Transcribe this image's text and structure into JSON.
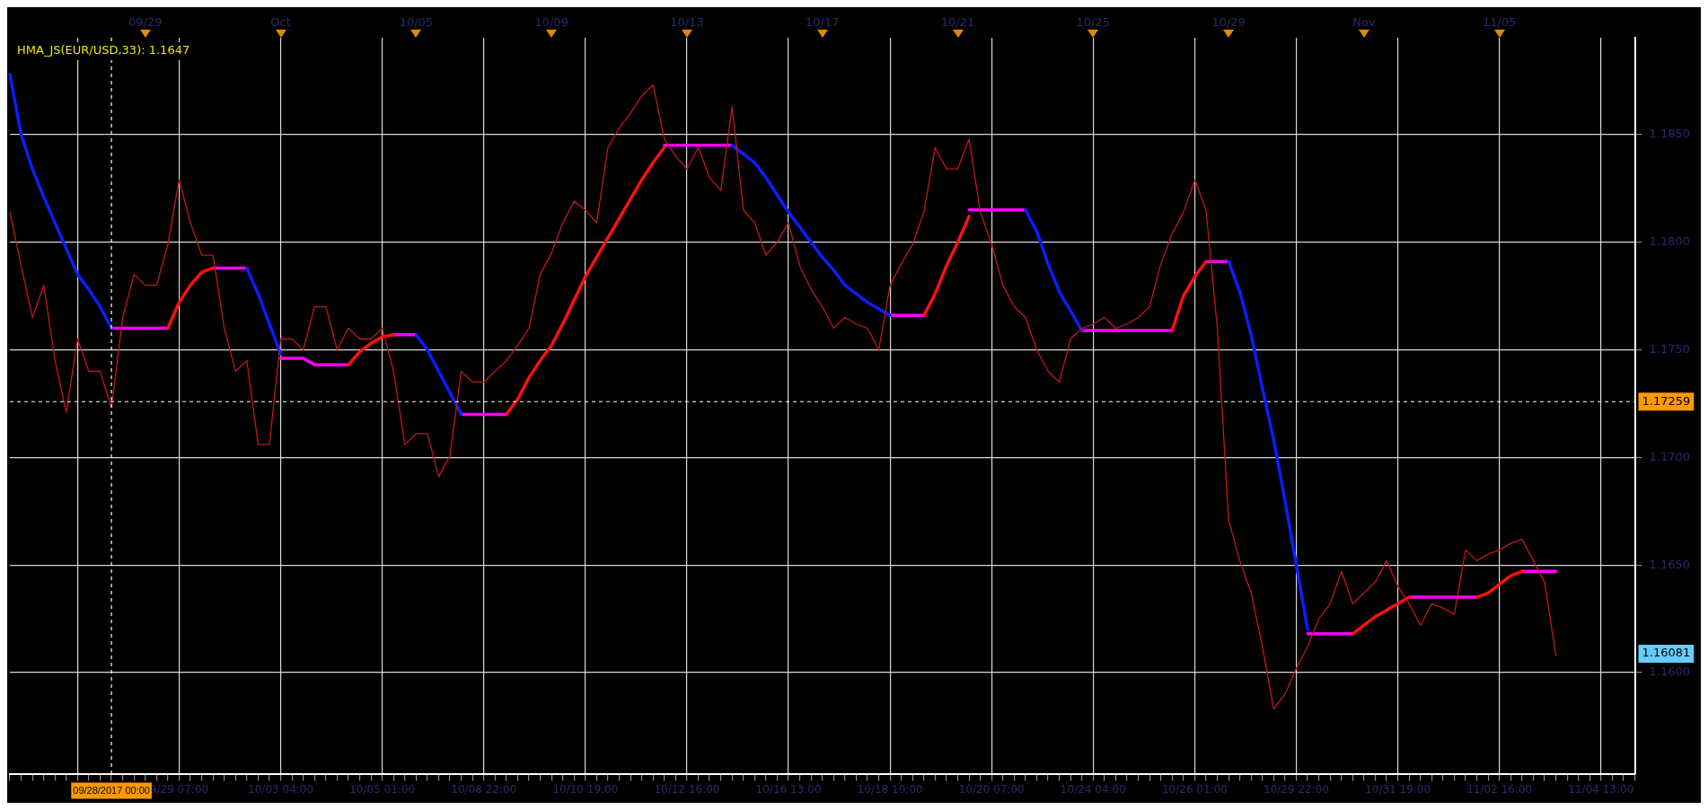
{
  "chart_data": {
    "type": "line",
    "title": "HMA_JS(EUR/USD,33): 1.1647",
    "categories": [
      null,
      null,
      null,
      null,
      null,
      null,
      null,
      null,
      null,
      "09/28/2017 00:00",
      null,
      null,
      null,
      null,
      null,
      "9/29 07:00",
      null,
      null,
      null,
      null,
      null,
      null,
      null,
      null,
      "10/03 04:00",
      null,
      null,
      null,
      null,
      null,
      null,
      null,
      null,
      "10/05 01:00",
      null,
      null,
      null,
      null,
      null,
      null,
      null,
      null,
      "10/08 22:00",
      null,
      null,
      null,
      null,
      null,
      null,
      null,
      null,
      "10/10 19:00",
      null,
      null,
      null,
      null,
      null,
      null,
      null,
      null,
      "10/12 16:00",
      null,
      null,
      null,
      null,
      null,
      null,
      null,
      null,
      "10/16 13:00",
      null,
      null,
      null,
      null,
      null,
      null,
      null,
      null,
      "10/18 10:00",
      null,
      null,
      null,
      null,
      null,
      null,
      null,
      null,
      "10/20 07:00",
      null,
      null,
      null,
      null,
      null,
      null,
      null,
      null,
      "10/24 04:00",
      null,
      null,
      null,
      null,
      null,
      null,
      null,
      null,
      "10/26 01:00",
      null,
      null,
      null,
      null,
      null,
      null,
      null,
      null,
      "10/29 22:00",
      null,
      null,
      null,
      null,
      null,
      null,
      null,
      null,
      "10/31 19:00",
      null,
      null,
      null,
      null,
      null,
      null,
      null,
      null,
      "11/02 16:00",
      null,
      null,
      null,
      null,
      null,
      null,
      null,
      null,
      "11/04 13:00",
      null,
      null,
      null
    ],
    "ylim": [
      1.1553,
      1.1895
    ],
    "yticks": [
      {
        "value": 1.16,
        "label": "1.1600"
      },
      {
        "value": 1.165,
        "label": "1.1650"
      },
      {
        "value": 1.17,
        "label": "1.1700"
      },
      {
        "value": 1.175,
        "label": "1.1750"
      },
      {
        "value": 1.18,
        "label": "1.1800"
      },
      {
        "value": 1.185,
        "label": "1.1850"
      }
    ],
    "grid": true,
    "legend": false,
    "ref_lines": [
      {
        "axis": "x",
        "value": "09/28/2017 00:00",
        "color": "#ffffff",
        "line_style": "dashed"
      },
      {
        "axis": "y",
        "value": 1.17259,
        "label": "1.17259",
        "color": "#ffffff",
        "line_style": "dashed"
      }
    ],
    "annotations": [
      "09/29",
      "Oct",
      "10/05",
      "10/09",
      "10/13",
      "10/17",
      "10/21",
      "10/25",
      "10/29",
      "Nov",
      "11/05",
      "1.16081"
    ],
    "series": [
      {
        "color": "#c01818",
        "values": [
          1.1814,
          1.1789,
          1.1765,
          1.178,
          1.1745,
          1.1721,
          1.1755,
          1.174,
          1.174,
          1.1723,
          1.1765,
          1.1785,
          1.178,
          1.178,
          1.1799,
          1.1829,
          1.1809,
          1.1794,
          1.1794,
          1.176,
          1.174,
          1.1745,
          1.1706,
          1.1706,
          1.1755,
          1.1755,
          1.175,
          1.177,
          1.177,
          1.175,
          1.176,
          1.1755,
          1.1755,
          1.176,
          1.174,
          1.1706,
          1.1711,
          1.1711,
          1.1691,
          1.1701,
          1.174,
          1.1735,
          1.1735,
          1.174,
          1.1745,
          1.1752,
          1.176,
          1.1785,
          1.1795,
          1.1809,
          1.1819,
          1.1815,
          1.1809,
          1.1844,
          1.1853,
          1.186,
          1.1868,
          1.1873,
          1.1848,
          1.184,
          1.1834,
          1.1844,
          1.183,
          1.1824,
          1.1863,
          1.1815,
          1.1809,
          1.1794,
          1.18,
          1.1809,
          1.1789,
          1.1778,
          1.177,
          1.176,
          1.1765,
          1.1762,
          1.176,
          1.175,
          1.178,
          1.179,
          1.1799,
          1.1814,
          1.1844,
          1.1834,
          1.1834,
          1.1848,
          1.1814,
          1.1799,
          1.178,
          1.177,
          1.1765,
          1.175,
          1.174,
          1.1735,
          1.1755,
          1.176,
          1.1762,
          1.1765,
          1.176,
          1.1762,
          1.1765,
          1.177,
          1.179,
          1.1804,
          1.1814,
          1.1829,
          1.1815,
          1.176,
          1.1671,
          1.1652,
          1.1637,
          1.1612,
          1.1583,
          1.159,
          1.1602,
          1.1612,
          1.1625,
          1.1632,
          1.1647,
          1.1632,
          1.1637,
          1.1642,
          1.1652,
          1.164,
          1.1632,
          1.1622,
          1.1632,
          1.163,
          1.1627,
          1.1657,
          1.1652,
          1.1655,
          1.1657,
          1.166,
          1.1662,
          1.1652,
          1.1642,
          1.16081,
          null,
          null,
          null,
          null,
          null,
          null,
          null
        ]
      },
      {
        "color": "#0a1eff",
        "values": [
          1.1878,
          1.185,
          1.1834,
          1.1821,
          1.1809,
          1.1797,
          1.1785,
          1.1778,
          1.177,
          1.176,
          null,
          null,
          null,
          null,
          null,
          null,
          null,
          null,
          null,
          null,
          null,
          1.1788,
          1.1776,
          1.1762,
          1.1748,
          null,
          null,
          null,
          null,
          null,
          null,
          null,
          null,
          null,
          null,
          null,
          1.1757,
          1.175,
          1.174,
          1.173,
          1.172,
          null,
          null,
          null,
          null,
          null,
          null,
          null,
          null,
          null,
          null,
          null,
          null,
          null,
          null,
          null,
          null,
          null,
          null,
          null,
          null,
          null,
          null,
          null,
          1.1845,
          1.1841,
          1.1837,
          1.183,
          1.1822,
          1.1814,
          1.1807,
          1.18,
          1.1793,
          1.1787,
          1.178,
          1.1776,
          1.1772,
          1.1769,
          1.1766,
          null,
          null,
          null,
          null,
          null,
          null,
          null,
          null,
          null,
          null,
          null,
          1.1815,
          1.1805,
          1.179,
          1.1777,
          1.1768,
          1.1759,
          null,
          null,
          null,
          null,
          null,
          null,
          null,
          null,
          null,
          null,
          null,
          null,
          1.1791,
          1.1777,
          1.1757,
          1.1732,
          1.1708,
          1.168,
          1.165,
          1.162,
          null,
          null,
          null,
          null,
          null,
          null,
          null,
          null,
          null,
          null,
          null,
          null,
          null,
          null,
          null,
          null,
          null,
          null,
          null,
          null,
          null,
          null,
          null,
          null,
          null,
          null,
          null,
          null,
          null
        ]
      },
      {
        "color": "#ff1010",
        "values": [
          null,
          null,
          null,
          null,
          null,
          null,
          null,
          null,
          null,
          null,
          null,
          null,
          null,
          null,
          1.176,
          1.1772,
          1.178,
          1.1786,
          1.1788,
          null,
          null,
          null,
          null,
          null,
          null,
          null,
          null,
          null,
          null,
          null,
          1.1743,
          1.1749,
          1.1753,
          1.1756,
          1.1757,
          null,
          null,
          null,
          null,
          null,
          null,
          null,
          null,
          null,
          1.172,
          1.1727,
          1.1737,
          1.1745,
          1.1752,
          1.1762,
          1.1773,
          1.1784,
          1.1793,
          1.1802,
          1.1811,
          1.182,
          1.1829,
          1.1837,
          1.1844,
          null,
          null,
          null,
          null,
          null,
          null,
          null,
          null,
          null,
          null,
          null,
          null,
          null,
          null,
          null,
          null,
          null,
          null,
          null,
          null,
          null,
          null,
          1.1766,
          1.1776,
          1.1789,
          1.18,
          1.1812,
          null,
          null,
          null,
          null,
          null,
          null,
          null,
          null,
          null,
          null,
          null,
          null,
          null,
          null,
          null,
          null,
          null,
          1.1759,
          1.1775,
          1.1784,
          1.1791,
          null,
          null,
          null,
          null,
          null,
          null,
          null,
          null,
          null,
          null,
          null,
          null,
          1.1618,
          1.1622,
          1.1626,
          1.1629,
          1.1632,
          1.1635,
          null,
          null,
          null,
          null,
          null,
          1.1635,
          1.1637,
          1.1641,
          1.1645,
          1.1647,
          null,
          null,
          null,
          null,
          null,
          null,
          null,
          null,
          null,
          null
        ]
      },
      {
        "color": "#ff00ff",
        "values": [
          null,
          null,
          null,
          null,
          null,
          null,
          null,
          null,
          null,
          1.176,
          1.176,
          1.176,
          1.176,
          1.176,
          1.176,
          null,
          null,
          null,
          1.1788,
          1.1788,
          1.1788,
          1.1788,
          null,
          null,
          1.1746,
          1.1746,
          1.1746,
          1.1743,
          1.1743,
          1.1743,
          1.1743,
          null,
          null,
          null,
          1.1757,
          1.1757,
          1.1757,
          null,
          null,
          null,
          1.172,
          1.172,
          1.172,
          1.172,
          1.172,
          null,
          null,
          null,
          null,
          null,
          null,
          null,
          null,
          null,
          null,
          null,
          null,
          null,
          1.1845,
          1.1845,
          1.1845,
          1.1845,
          1.1845,
          1.1845,
          1.1845,
          null,
          null,
          null,
          null,
          null,
          null,
          null,
          null,
          null,
          null,
          null,
          null,
          null,
          1.1766,
          1.1766,
          1.1766,
          1.1766,
          null,
          null,
          null,
          1.1815,
          1.1815,
          1.1815,
          1.1815,
          1.1815,
          1.1815,
          null,
          null,
          null,
          null,
          1.1759,
          1.1759,
          1.1759,
          1.1759,
          1.1759,
          1.1759,
          1.1759,
          1.1759,
          1.1759,
          null,
          null,
          1.1791,
          1.1791,
          1.1791,
          null,
          null,
          null,
          null,
          null,
          null,
          1.1618,
          1.1618,
          1.1618,
          1.1618,
          1.1618,
          null,
          null,
          null,
          null,
          1.1635,
          1.1635,
          1.1635,
          1.1635,
          1.1635,
          1.1635,
          1.1635,
          null,
          null,
          null,
          1.1647,
          1.1647,
          1.1647,
          1.1647,
          null,
          null,
          null,
          null,
          null,
          null,
          null
        ]
      }
    ]
  }
}
